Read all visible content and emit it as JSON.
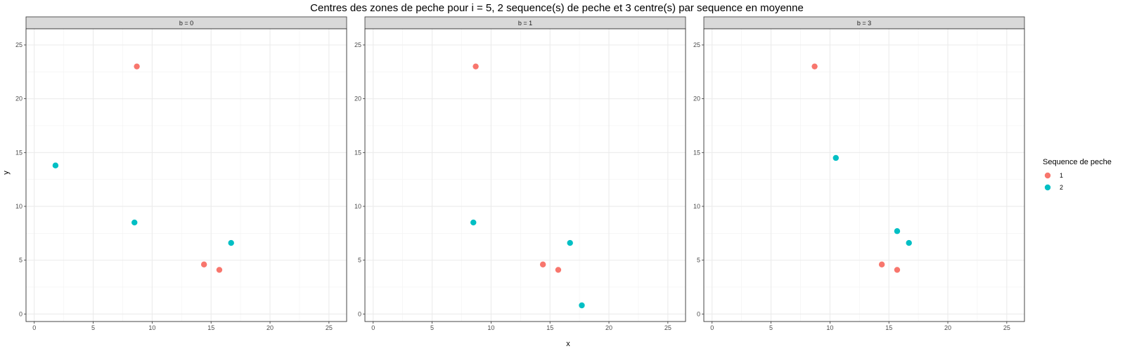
{
  "chart_data": {
    "type": "scatter",
    "title": "Centres des zones de peche pour i = 5, 2 sequence(s) de peche et 3 centre(s) par sequence en moyenne",
    "xlabel": "x",
    "ylabel": "y",
    "xlim": [
      -0.7,
      26.5
    ],
    "ylim": [
      -0.7,
      26.5
    ],
    "x_ticks": [
      "0",
      "5",
      "10",
      "15",
      "20",
      "25"
    ],
    "y_ticks": [
      "0",
      "5",
      "10",
      "15",
      "20",
      "25"
    ],
    "grid": true,
    "legend": {
      "title": "Sequence de peche",
      "position": "right",
      "entries": [
        {
          "label": "1",
          "color": "#F8766D"
        },
        {
          "label": "2",
          "color": "#00BFC4"
        }
      ]
    },
    "facets": [
      {
        "label": "b = 0",
        "series": [
          {
            "name": "1",
            "color": "#F8766D",
            "points": [
              [
                8.7,
                23.0
              ],
              [
                14.4,
                4.6
              ],
              [
                15.7,
                4.1
              ]
            ]
          },
          {
            "name": "2",
            "color": "#00BFC4",
            "points": [
              [
                1.8,
                13.8
              ],
              [
                8.5,
                8.5
              ],
              [
                16.7,
                6.6
              ]
            ]
          }
        ]
      },
      {
        "label": "b = 1",
        "series": [
          {
            "name": "1",
            "color": "#F8766D",
            "points": [
              [
                8.7,
                23.0
              ],
              [
                14.4,
                4.6
              ],
              [
                15.7,
                4.1
              ]
            ]
          },
          {
            "name": "2",
            "color": "#00BFC4",
            "points": [
              [
                8.5,
                8.5
              ],
              [
                16.7,
                6.6
              ],
              [
                17.7,
                0.8
              ]
            ]
          }
        ]
      },
      {
        "label": "b = 3",
        "series": [
          {
            "name": "1",
            "color": "#F8766D",
            "points": [
              [
                8.7,
                23.0
              ],
              [
                14.4,
                4.6
              ],
              [
                15.7,
                4.1
              ]
            ]
          },
          {
            "name": "2",
            "color": "#00BFC4",
            "points": [
              [
                10.5,
                14.5
              ],
              [
                15.7,
                7.7
              ],
              [
                16.7,
                6.6
              ]
            ]
          }
        ]
      }
    ]
  }
}
